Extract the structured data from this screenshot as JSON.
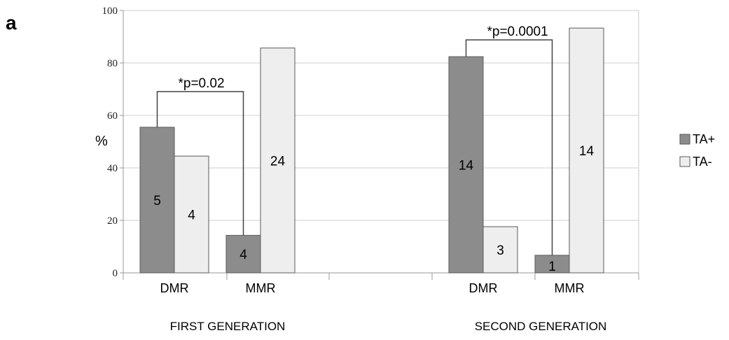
{
  "panel_letter": "a",
  "chart_data": {
    "type": "bar",
    "ylabel": "%",
    "ylim": [
      0,
      100
    ],
    "yticks": [
      0,
      20,
      40,
      60,
      80,
      100
    ],
    "grid": true,
    "legend_position": "right",
    "series": [
      {
        "name": "TA+",
        "color": "#8c8c8c"
      },
      {
        "name": "TA-",
        "color": "#eeeeee"
      }
    ],
    "groups": [
      {
        "name": "FIRST GENERATION",
        "categories": [
          {
            "label": "DMR",
            "values": [
              55.5,
              44.5
            ],
            "counts": [
              "5",
              "4"
            ]
          },
          {
            "label": "MMR",
            "values": [
              14.3,
              85.7
            ],
            "counts": [
              "4",
              "24"
            ]
          }
        ],
        "annotation": "*p=0.02"
      },
      {
        "name": "SECOND GENERATION",
        "categories": [
          {
            "label": "DMR",
            "values": [
              82.4,
              17.6
            ],
            "counts": [
              "14",
              "3"
            ]
          },
          {
            "label": "MMR",
            "values": [
              6.7,
              93.3
            ],
            "counts": [
              "1",
              "14"
            ]
          }
        ],
        "annotation": "*p=0.0001"
      }
    ]
  }
}
